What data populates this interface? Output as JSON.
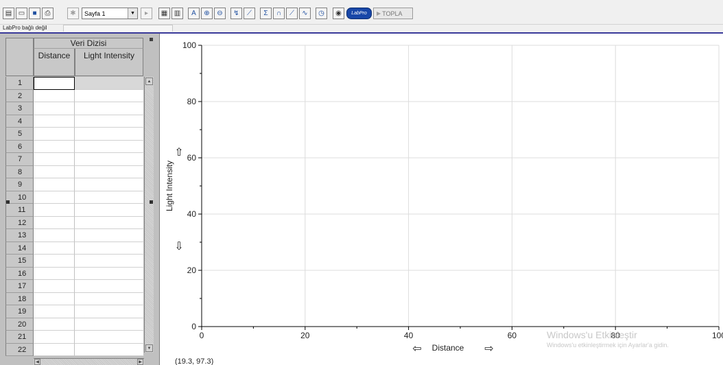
{
  "toolbar": {
    "page_selector": "Sayfa 1",
    "labpro_label": "LabPro",
    "collect_label": "TOPLA"
  },
  "status": {
    "connection": "LabPro bağlı değil"
  },
  "data_table": {
    "title": "Veri Dizisi",
    "columns": [
      "Distance",
      "Light Intensity"
    ],
    "rows": [
      "1",
      "2",
      "3",
      "4",
      "5",
      "6",
      "7",
      "8",
      "9",
      "10",
      "11",
      "12",
      "13",
      "14",
      "15",
      "16",
      "17",
      "18",
      "19",
      "20",
      "21",
      "22"
    ]
  },
  "chart_data": {
    "type": "scatter",
    "xlabel": "Distance",
    "ylabel": "Light Intensity",
    "xlim": [
      0,
      100
    ],
    "ylim": [
      0,
      100
    ],
    "x_ticks": [
      "0",
      "20",
      "40",
      "60",
      "80",
      "100"
    ],
    "y_ticks": [
      "0",
      "20",
      "40",
      "60",
      "80",
      "100"
    ],
    "grid": true,
    "series": []
  },
  "graph": {
    "coordinate_readout": "(19.3, 97.3)"
  },
  "watermark": {
    "title": "Windows'u Etkinleştir",
    "subtitle": "Windows'u etkinleştirmek için Ayarlar'a gidin."
  }
}
